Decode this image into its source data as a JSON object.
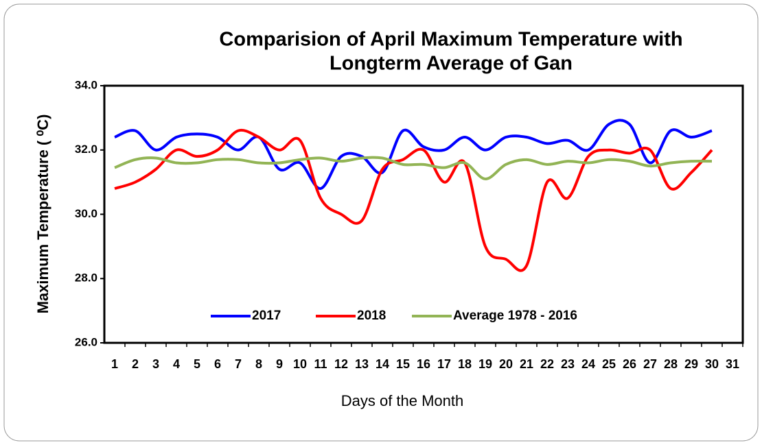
{
  "chart_data": {
    "type": "line",
    "title": [
      "Comparision of April Maximum Temperature with",
      "Longterm Average of Gan"
    ],
    "x_label": "Days of the Month",
    "y_label": "Maximum Temperature ( ⁰C)",
    "categories": [
      1,
      2,
      3,
      4,
      5,
      6,
      7,
      8,
      9,
      10,
      11,
      12,
      13,
      14,
      15,
      16,
      17,
      18,
      19,
      20,
      21,
      22,
      23,
      24,
      25,
      26,
      27,
      28,
      29,
      30,
      31
    ],
    "series": [
      {
        "name": "2017",
        "color": "#0000ff",
        "values": [
          32.4,
          32.6,
          32.0,
          32.4,
          32.5,
          32.4,
          32.0,
          32.4,
          31.4,
          31.6,
          30.8,
          31.8,
          31.8,
          31.3,
          32.6,
          32.1,
          32.0,
          32.4,
          32.0,
          32.4,
          32.4,
          32.2,
          32.3,
          32.0,
          32.8,
          32.8,
          31.6,
          32.6,
          32.4,
          32.6,
          null
        ]
      },
      {
        "name": "2018",
        "color": "#ff0000",
        "values": [
          30.8,
          31.0,
          31.4,
          32.0,
          31.8,
          32.0,
          32.6,
          32.4,
          32.0,
          32.3,
          30.5,
          30.0,
          29.8,
          31.4,
          31.7,
          32.0,
          31.0,
          31.6,
          29.0,
          28.6,
          28.4,
          31.0,
          30.5,
          31.8,
          32.0,
          31.9,
          32.0,
          30.8,
          31.3,
          32.0,
          null
        ]
      },
      {
        "name": "Average 1978 - 2016",
        "color": "#92b455",
        "values": [
          31.45,
          31.7,
          31.75,
          31.6,
          31.6,
          31.7,
          31.7,
          31.6,
          31.6,
          31.7,
          31.75,
          31.65,
          31.75,
          31.75,
          31.55,
          31.55,
          31.45,
          31.6,
          31.1,
          31.55,
          31.7,
          31.55,
          31.65,
          31.6,
          31.7,
          31.65,
          31.5,
          31.6,
          31.65,
          31.65,
          null
        ]
      }
    ],
    "ylim": [
      26,
      34
    ],
    "yticks": [
      {
        "value": 26,
        "label": "26.0"
      },
      {
        "value": 28,
        "label": "28.0"
      },
      {
        "value": 30,
        "label": "30.0"
      },
      {
        "value": 32,
        "label": "32.0"
      },
      {
        "value": 34,
        "label": "34.0"
      }
    ],
    "grid": false,
    "legend": "bottom"
  }
}
